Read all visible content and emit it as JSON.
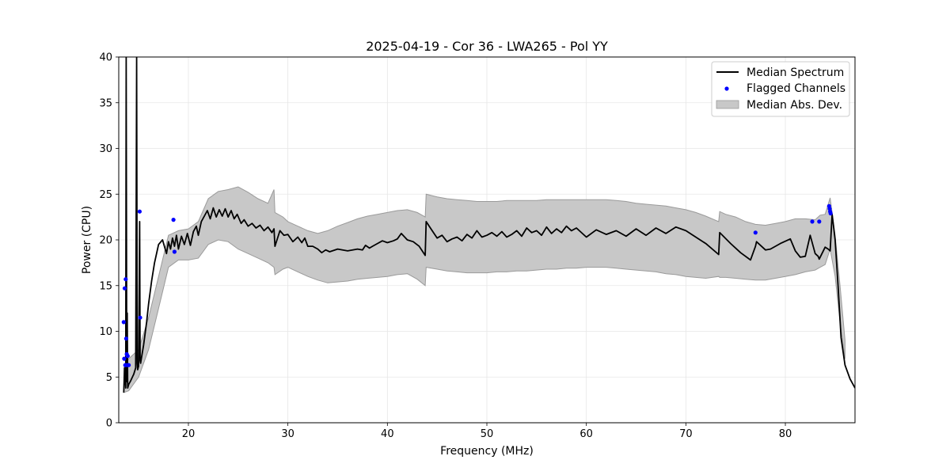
{
  "chart_data": {
    "type": "line",
    "title": "2025-04-19 - Cor 36 - LWA265 - Pol YY",
    "xlabel": "Frequency (MHz)",
    "ylabel": "Power (CPU)",
    "xlim": [
      13.0,
      87.0
    ],
    "ylim": [
      0,
      40
    ],
    "xticks": [
      20,
      30,
      40,
      50,
      60,
      70,
      80
    ],
    "yticks": [
      0,
      5,
      10,
      15,
      20,
      25,
      30,
      35,
      40
    ],
    "grid": true,
    "legend_position": "top-right",
    "colors": {
      "median": "#000000",
      "flagged": "#0000ff",
      "mad_fill": "#c8c8c8",
      "mad_edge": "#9a9a9a",
      "grid": "#e6e6e6"
    },
    "series": [
      {
        "name": "Median Spectrum",
        "kind": "line",
        "x": [
          13.5,
          13.6,
          13.7,
          13.75,
          13.8,
          13.85,
          13.9,
          14.0,
          14.2,
          14.5,
          14.7,
          14.8,
          14.85,
          14.9,
          15.0,
          15.1,
          15.15,
          15.2,
          15.3,
          15.5,
          15.8,
          16.0,
          16.3,
          16.6,
          17.0,
          17.4,
          17.8,
          18.0,
          18.2,
          18.4,
          18.6,
          18.8,
          19.0,
          19.3,
          19.6,
          19.9,
          20.2,
          20.5,
          20.8,
          21.0,
          21.3,
          21.6,
          21.9,
          22.2,
          22.5,
          22.8,
          23.1,
          23.4,
          23.7,
          24.0,
          24.3,
          24.6,
          24.9,
          25.3,
          25.6,
          26.0,
          26.4,
          26.8,
          27.2,
          27.6,
          28.0,
          28.4,
          28.6,
          28.7,
          29.2,
          29.6,
          30.0,
          30.5,
          31.0,
          31.4,
          31.7,
          32.0,
          32.5,
          33.0,
          33.4,
          33.8,
          34.2,
          35.0,
          36.0,
          37.0,
          37.5,
          37.8,
          38.2,
          38.5,
          39.0,
          39.5,
          40.0,
          40.6,
          41.0,
          41.4,
          42.0,
          42.6,
          43.2,
          43.8,
          43.9,
          44.5,
          45.0,
          45.5,
          46.0,
          46.5,
          47.0,
          47.5,
          48.0,
          48.5,
          49.0,
          49.5,
          50.0,
          50.5,
          51.0,
          51.5,
          52.0,
          52.5,
          53.0,
          53.5,
          54.0,
          54.5,
          55.0,
          55.5,
          56.0,
          56.5,
          57.0,
          57.5,
          58.0,
          58.5,
          59.0,
          60.0,
          61.0,
          62.0,
          63.0,
          64.0,
          65.0,
          66.0,
          67.0,
          68.0,
          69.0,
          70.0,
          71.0,
          72.0,
          73.3,
          73.4,
          74.5,
          75.5,
          76.5,
          77.0,
          77.1,
          78.0,
          78.5,
          79.5,
          80.5,
          81.0,
          81.5,
          82.0,
          82.5,
          83.0,
          83.3,
          83.4,
          84.0,
          84.3,
          84.5,
          84.7,
          85.0,
          85.3,
          85.6,
          86.0,
          86.5,
          87.0
        ],
        "values": [
          3.3,
          6.0,
          3.8,
          40.0,
          4.5,
          12.0,
          3.8,
          4.2,
          4.6,
          5.3,
          6.0,
          40.0,
          6.5,
          5.8,
          6.2,
          22.0,
          6.8,
          6.5,
          7.2,
          8.5,
          11.0,
          13.0,
          15.5,
          17.5,
          19.5,
          20.0,
          18.5,
          19.8,
          19.0,
          20.2,
          19.3,
          20.5,
          19.0,
          20.4,
          19.5,
          20.7,
          19.4,
          20.9,
          21.5,
          20.5,
          22.0,
          22.6,
          23.2,
          22.3,
          23.5,
          22.5,
          23.3,
          22.6,
          23.4,
          22.5,
          23.2,
          22.3,
          22.8,
          21.8,
          22.2,
          21.5,
          21.8,
          21.3,
          21.6,
          21.0,
          21.4,
          20.8,
          21.2,
          19.3,
          21.0,
          20.5,
          20.6,
          19.8,
          20.3,
          19.7,
          20.2,
          19.3,
          19.3,
          19.0,
          18.6,
          18.9,
          18.7,
          19.0,
          18.8,
          19.0,
          18.9,
          19.4,
          19.1,
          19.3,
          19.6,
          19.9,
          19.7,
          19.9,
          20.1,
          20.7,
          20.0,
          19.8,
          19.3,
          18.3,
          22.0,
          21.0,
          20.2,
          20.5,
          19.8,
          20.1,
          20.3,
          19.9,
          20.6,
          20.2,
          21.0,
          20.3,
          20.5,
          20.8,
          20.4,
          20.9,
          20.3,
          20.6,
          21.0,
          20.4,
          21.3,
          20.8,
          21.0,
          20.5,
          21.4,
          20.7,
          21.2,
          20.8,
          21.5,
          21.0,
          21.3,
          20.3,
          21.1,
          20.6,
          21.0,
          20.4,
          21.2,
          20.5,
          21.3,
          20.7,
          21.4,
          21.0,
          20.3,
          19.6,
          18.4,
          20.8,
          19.6,
          18.6,
          17.8,
          19.3,
          19.8,
          18.9,
          19.0,
          19.6,
          20.1,
          18.8,
          18.1,
          18.2,
          20.5,
          18.5,
          18.2,
          17.9,
          19.2,
          19.0,
          18.8,
          22.8,
          20.0,
          15.0,
          9.3,
          6.3,
          4.8,
          3.8
        ]
      },
      {
        "name": "Flagged Channels",
        "kind": "scatter",
        "x": [
          13.5,
          13.55,
          13.6,
          13.65,
          13.7,
          13.75,
          13.8,
          13.85,
          13.9,
          14.0,
          15.1,
          15.15,
          18.5,
          18.6,
          77.0,
          82.7,
          83.4,
          84.4,
          84.45,
          84.5,
          84.55
        ],
        "values": [
          11.0,
          7.0,
          14.7,
          6.3,
          15.7,
          9.2,
          7.5,
          6.3,
          7.3,
          6.3,
          23.1,
          11.5,
          22.2,
          18.7,
          20.8,
          22.0,
          22.0,
          23.7,
          23.4,
          23.1,
          22.9
        ]
      },
      {
        "name": "Median Abs. Dev.",
        "kind": "band",
        "x": [
          13.5,
          14.0,
          15.0,
          16.0,
          17.0,
          18.0,
          19.0,
          20.0,
          21.0,
          22.0,
          23.0,
          24.0,
          25.0,
          26.0,
          27.0,
          28.0,
          28.6,
          28.7,
          29.5,
          30.0,
          31.0,
          32.0,
          33.0,
          34.0,
          35.0,
          36.0,
          37.0,
          38.0,
          39.0,
          40.0,
          41.0,
          42.0,
          43.0,
          43.8,
          43.9,
          45.0,
          46.0,
          47.0,
          48.0,
          49.0,
          50.0,
          51.0,
          52.0,
          53.0,
          54.0,
          55.0,
          56.0,
          57.0,
          58.0,
          59.0,
          60.0,
          61.0,
          62.0,
          63.0,
          64.0,
          65.0,
          66.0,
          67.0,
          68.0,
          69.0,
          70.0,
          71.0,
          72.0,
          73.3,
          73.4,
          74.0,
          75.0,
          76.0,
          77.0,
          78.0,
          79.0,
          80.0,
          81.0,
          82.0,
          83.0,
          83.5,
          84.0,
          84.5,
          85.0,
          85.5,
          86.0
        ],
        "upper": [
          6.0,
          7.0,
          8.0,
          11.5,
          16.0,
          20.5,
          21.0,
          21.2,
          22.0,
          24.5,
          25.3,
          25.5,
          25.8,
          25.2,
          24.5,
          24.0,
          25.5,
          23.0,
          22.5,
          22.0,
          21.5,
          21.0,
          20.7,
          21.0,
          21.5,
          21.9,
          22.3,
          22.6,
          22.8,
          23.0,
          23.2,
          23.3,
          23.0,
          22.5,
          25.0,
          24.7,
          24.5,
          24.4,
          24.3,
          24.2,
          24.2,
          24.2,
          24.3,
          24.3,
          24.3,
          24.3,
          24.4,
          24.4,
          24.4,
          24.4,
          24.4,
          24.4,
          24.4,
          24.3,
          24.2,
          24.0,
          23.9,
          23.8,
          23.7,
          23.5,
          23.3,
          23.0,
          22.6,
          22.0,
          23.1,
          22.8,
          22.5,
          22.0,
          21.7,
          21.6,
          21.8,
          22.0,
          22.3,
          22.3,
          22.2,
          22.7,
          22.8,
          24.6,
          20.5,
          15.0,
          9.0
        ],
        "lower": [
          3.3,
          3.5,
          5.0,
          8.0,
          12.5,
          17.0,
          17.8,
          17.8,
          18.0,
          19.5,
          20.0,
          19.8,
          19.0,
          18.5,
          18.0,
          17.5,
          17.0,
          16.2,
          16.8,
          17.0,
          16.5,
          16.0,
          15.6,
          15.3,
          15.4,
          15.5,
          15.7,
          15.8,
          15.9,
          16.0,
          16.2,
          16.3,
          15.7,
          15.0,
          17.0,
          16.8,
          16.6,
          16.5,
          16.4,
          16.4,
          16.4,
          16.5,
          16.5,
          16.6,
          16.6,
          16.7,
          16.8,
          16.8,
          16.9,
          16.9,
          17.0,
          17.0,
          17.0,
          16.9,
          16.8,
          16.7,
          16.6,
          16.5,
          16.3,
          16.2,
          16.0,
          15.9,
          15.8,
          16.0,
          15.9,
          15.9,
          15.8,
          15.7,
          15.6,
          15.6,
          15.8,
          16.0,
          16.2,
          16.5,
          16.7,
          17.0,
          17.3,
          19.0,
          16.0,
          11.0,
          7.0
        ]
      }
    ]
  }
}
